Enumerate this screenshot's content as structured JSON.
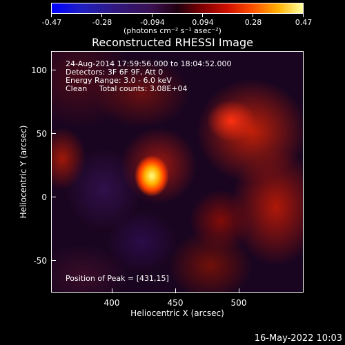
{
  "colorbar": {
    "tick_labels": [
      "-0.47",
      "-0.28",
      "-0.094",
      "0.094",
      "0.28",
      "0.47"
    ],
    "units": "(photons cm⁻² s⁻¹ asec⁻²)"
  },
  "title": "Reconstructed RHESSI Image",
  "annotations": {
    "time_range": "24-Aug-2014 17:59:56.000 to 18:04:52.000",
    "detectors": "Detectors: 3F 6F 9F, Att 0",
    "energy": "Energy Range: 3.0 - 6.0 keV",
    "clean": "Clean     Total counts: 3.08E+04",
    "peak": "Position of Peak = [431,15]"
  },
  "axes": {
    "xlabel": "Heliocentric X (arcsec)",
    "ylabel": "Heliocentric Y (arcsec)",
    "xticks": [
      "400",
      "450",
      "500"
    ],
    "yticks": [
      "100",
      "50",
      "0",
      "-50"
    ]
  },
  "footer": {
    "datestamp": "16-May-2022 10:03"
  },
  "chart_data": {
    "type": "heatmap",
    "title": "Reconstructed RHESSI Image",
    "xlabel": "Heliocentric X (arcsec)",
    "ylabel": "Heliocentric Y (arcsec)",
    "xlim": [
      353,
      543
    ],
    "ylim": [
      -75,
      112
    ],
    "colorbar_range": [
      -0.47,
      0.47
    ],
    "colorbar_ticks": [
      -0.47,
      -0.28,
      -0.094,
      0.094,
      0.28,
      0.47
    ],
    "peak_position": [
      431,
      15
    ],
    "colors": {
      "low": "#0000ff",
      "mid": "#200010",
      "high": "#ffffa0"
    }
  }
}
